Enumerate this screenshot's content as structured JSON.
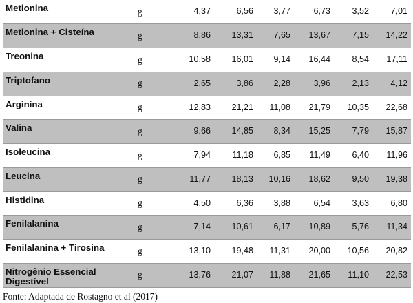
{
  "table": {
    "rows": [
      {
        "name": "Metionina",
        "unit": "g",
        "values": [
          "4,37",
          "6,56",
          "3,77",
          "6,73",
          "3,52",
          "7,01"
        ]
      },
      {
        "name": "Metionina + Cisteína",
        "unit": "g",
        "values": [
          "8,86",
          "13,31",
          "7,65",
          "13,67",
          "7,15",
          "14,22"
        ]
      },
      {
        "name": "Treonina",
        "unit": "g",
        "values": [
          "10,58",
          "16,01",
          "9,14",
          "16,44",
          "8,54",
          "17,11"
        ]
      },
      {
        "name": "Triptofano",
        "unit": "g",
        "values": [
          "2,65",
          "3,86",
          "2,28",
          "3,96",
          "2,13",
          "4,12"
        ]
      },
      {
        "name": "Arginina",
        "unit": "g",
        "values": [
          "12,83",
          "21,21",
          "11,08",
          "21,79",
          "10,35",
          "22,68"
        ]
      },
      {
        "name": "Valina",
        "unit": "g",
        "values": [
          "9,66",
          "14,85",
          "8,34",
          "15,25",
          "7,79",
          "15,87"
        ]
      },
      {
        "name": "Isoleucina",
        "unit": "g",
        "values": [
          "7,94",
          "11,18",
          "6,85",
          "11,49",
          "6,40",
          "11,96"
        ]
      },
      {
        "name": "Leucina",
        "unit": "g",
        "values": [
          "11,77",
          "18,13",
          "10,16",
          "18,62",
          "9,50",
          "19,38"
        ]
      },
      {
        "name": "Histidina",
        "unit": "g",
        "values": [
          "4,50",
          "6,36",
          "3,88",
          "6,54",
          "3,63",
          "6,80"
        ]
      },
      {
        "name": "Fenilalanina",
        "unit": "g",
        "values": [
          "7,14",
          "10,61",
          "6,17",
          "10,89",
          "5,76",
          "11,34"
        ]
      },
      {
        "name": "Fenilalanina + Tirosina",
        "unit": "g",
        "values": [
          "13,10",
          "19,48",
          "11,31",
          "20,00",
          "10,56",
          "20,82"
        ]
      },
      {
        "name": "Nitrogênio Essencial Digestível",
        "unit": "g",
        "values": [
          "13,76",
          "21,07",
          "11,88",
          "21,65",
          "11,10",
          "22,53"
        ]
      }
    ]
  },
  "source": "Fonte: Adaptada de Rostagno et al (2017)",
  "colors": {
    "shaded_row": "#bfbfbf",
    "plain_row": "#ffffff"
  }
}
